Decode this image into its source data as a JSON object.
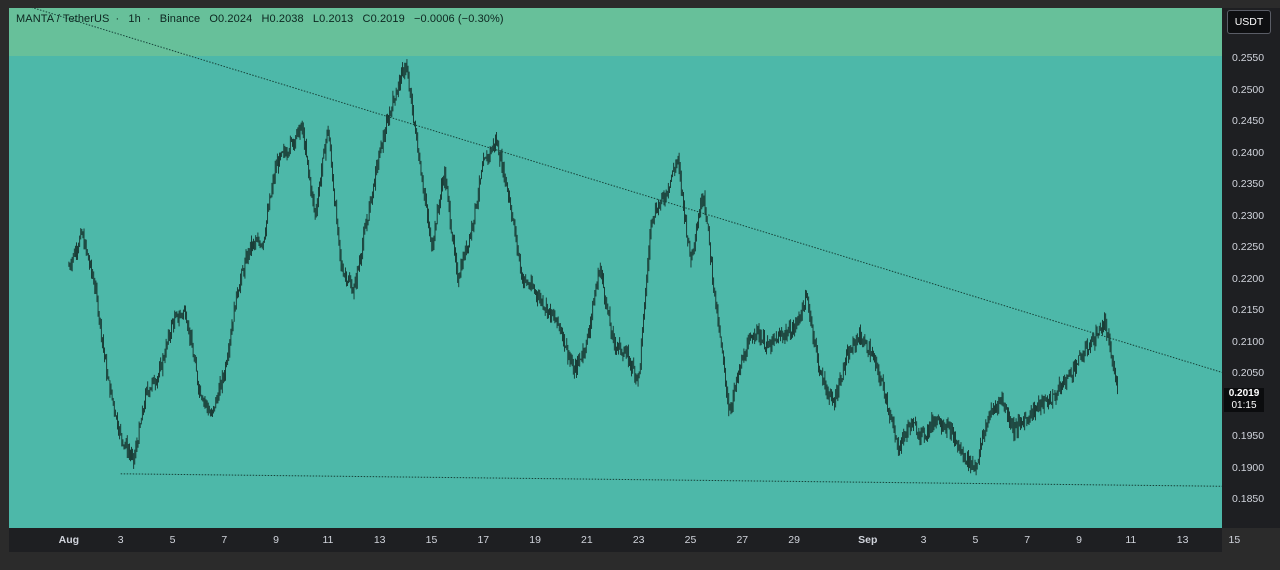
{
  "header": {
    "symbol": "MANTA / TetherUS",
    "interval": "1h",
    "exchange": "Binance",
    "open": "O0.2024",
    "high": "H0.2038",
    "low": "L0.2013",
    "close": "C0.2019",
    "change": "−0.0006 (−0.30%)"
  },
  "currency": "USDT",
  "price_label": {
    "price": "0.2019",
    "countdown": "01:15"
  },
  "colors": {
    "background": "#4db8a9",
    "band": "#67c09a",
    "candle": "#0e1f1b",
    "trendline": "#17433a",
    "axis_text": "#d1d4dc"
  },
  "chart_data": {
    "type": "candlestick",
    "y_ticks": [
      "0.2550",
      "0.2500",
      "0.2450",
      "0.2400",
      "0.2350",
      "0.2300",
      "0.2250",
      "0.2200",
      "0.2150",
      "0.2100",
      "0.2050",
      "0.2000",
      "0.1950",
      "0.1900",
      "0.1850"
    ],
    "x_ticks": [
      {
        "label": "Aug",
        "major": true
      },
      {
        "label": "3"
      },
      {
        "label": "5"
      },
      {
        "label": "7"
      },
      {
        "label": "9"
      },
      {
        "label": "11"
      },
      {
        "label": "13"
      },
      {
        "label": "15"
      },
      {
        "label": "17"
      },
      {
        "label": "19"
      },
      {
        "label": "21"
      },
      {
        "label": "23"
      },
      {
        "label": "25"
      },
      {
        "label": "27"
      },
      {
        "label": "29"
      },
      {
        "label": "Sep",
        "major": true
      },
      {
        "label": "3"
      },
      {
        "label": "5"
      },
      {
        "label": "7"
      },
      {
        "label": "9"
      },
      {
        "label": "11"
      },
      {
        "label": "13"
      },
      {
        "label": "15"
      }
    ],
    "ylim": [
      0.18,
      0.263
    ],
    "band_above": 0.2555,
    "price_path": [
      [
        "2024-08-01",
        0.222
      ],
      [
        "2024-08-01",
        0.227
      ],
      [
        "2024-08-02",
        0.219
      ],
      [
        "2024-08-02",
        0.204
      ],
      [
        "2024-08-03",
        0.195
      ],
      [
        "2024-08-03",
        0.191
      ],
      [
        "2024-08-04",
        0.202
      ],
      [
        "2024-08-04",
        0.205
      ],
      [
        "2024-08-05",
        0.213
      ],
      [
        "2024-08-05",
        0.215
      ],
      [
        "2024-08-06",
        0.203
      ],
      [
        "2024-08-06",
        0.198
      ],
      [
        "2024-08-07",
        0.205
      ],
      [
        "2024-08-07",
        0.218
      ],
      [
        "2024-08-08",
        0.225
      ],
      [
        "2024-08-08",
        0.226
      ],
      [
        "2024-08-09",
        0.238
      ],
      [
        "2024-08-10",
        0.244
      ],
      [
        "2024-08-10",
        0.23
      ],
      [
        "2024-08-11",
        0.244
      ],
      [
        "2024-08-11",
        0.222
      ],
      [
        "2024-08-12",
        0.218
      ],
      [
        "2024-08-12",
        0.229
      ],
      [
        "2024-08-13",
        0.24
      ],
      [
        "2024-08-13",
        0.248
      ],
      [
        "2024-08-14",
        0.254
      ],
      [
        "2024-08-14",
        0.24
      ],
      [
        "2024-08-15",
        0.225
      ],
      [
        "2024-08-15",
        0.237
      ],
      [
        "2024-08-16",
        0.22
      ],
      [
        "2024-08-16",
        0.227
      ],
      [
        "2024-08-17",
        0.238
      ],
      [
        "2024-08-17",
        0.242
      ],
      [
        "2024-08-18",
        0.233
      ],
      [
        "2024-08-18",
        0.22
      ],
      [
        "2024-08-19",
        0.218
      ],
      [
        "2024-08-20",
        0.212
      ],
      [
        "2024-08-20",
        0.205
      ],
      [
        "2024-08-21",
        0.21
      ],
      [
        "2024-08-21",
        0.222
      ],
      [
        "2024-08-22",
        0.21
      ],
      [
        "2024-08-22",
        0.208
      ],
      [
        "2024-08-23",
        0.204
      ],
      [
        "2024-08-23",
        0.23
      ],
      [
        "2024-08-24",
        0.233
      ],
      [
        "2024-08-24",
        0.239
      ],
      [
        "2024-08-25",
        0.223
      ],
      [
        "2024-08-25",
        0.234
      ],
      [
        "2024-08-26",
        0.215
      ],
      [
        "2024-08-26",
        0.199
      ],
      [
        "2024-08-27",
        0.207
      ],
      [
        "2024-08-27",
        0.212
      ],
      [
        "2024-08-28",
        0.209
      ],
      [
        "2024-08-28",
        0.211
      ],
      [
        "2024-08-29",
        0.212
      ],
      [
        "2024-08-29",
        0.217
      ],
      [
        "2024-08-30",
        0.205
      ],
      [
        "2024-08-30",
        0.2
      ],
      [
        "2024-08-31",
        0.207
      ],
      [
        "2024-08-31",
        0.211
      ],
      [
        "2024-09-01",
        0.208
      ],
      [
        "2024-09-01",
        0.202
      ],
      [
        "2024-09-02",
        0.193
      ],
      [
        "2024-09-02",
        0.197
      ],
      [
        "2024-09-03",
        0.195
      ],
      [
        "2024-09-03",
        0.198
      ],
      [
        "2024-09-04",
        0.196
      ],
      [
        "2024-09-04",
        0.192
      ],
      [
        "2024-09-05",
        0.19
      ],
      [
        "2024-09-05",
        0.198
      ],
      [
        "2024-09-06",
        0.201
      ],
      [
        "2024-09-06",
        0.196
      ],
      [
        "2024-09-07",
        0.198
      ],
      [
        "2024-09-07",
        0.2
      ],
      [
        "2024-09-08",
        0.201
      ],
      [
        "2024-09-08",
        0.204
      ],
      [
        "2024-09-09",
        0.207
      ],
      [
        "2024-09-09",
        0.21
      ],
      [
        "2024-09-10",
        0.213
      ],
      [
        "2024-09-10",
        0.202
      ]
    ],
    "trendlines": [
      {
        "name": "resistance",
        "from": [
          "2024-07-29",
          0.265
        ],
        "to": [
          "2024-09-15",
          0.2045
        ]
      },
      {
        "name": "support",
        "from": [
          "2024-08-03",
          0.189
        ],
        "to": [
          "2024-09-15",
          0.187
        ]
      }
    ]
  }
}
